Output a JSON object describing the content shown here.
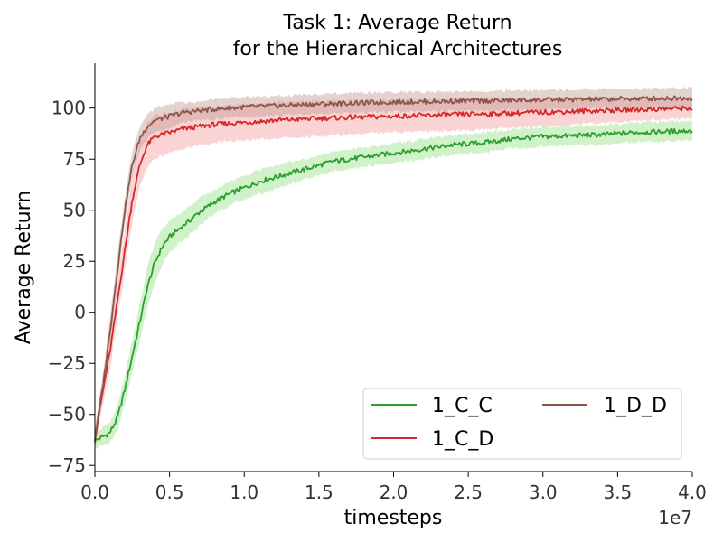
{
  "chart_data": {
    "type": "line",
    "title": [
      "Task 1: Average Return",
      "for the Hierarchical Architectures"
    ],
    "xlabel": "timesteps",
    "ylabel": "Average Return",
    "x_offset_label": "1e7",
    "xlim": [
      0,
      4.0
    ],
    "ylim": [
      -78,
      122
    ],
    "xticks": [
      0.0,
      0.5,
      1.0,
      1.5,
      2.0,
      2.5,
      3.0,
      3.5,
      4.0
    ],
    "xtick_labels": [
      "0.0",
      "0.5",
      "1.0",
      "1.5",
      "2.0",
      "2.5",
      "3.0",
      "3.5",
      "4.0"
    ],
    "yticks": [
      -75,
      -50,
      -25,
      0,
      25,
      50,
      75,
      100
    ],
    "ytick_labels": [
      "−75",
      "−50",
      "−25",
      "0",
      "25",
      "50",
      "75",
      "100"
    ],
    "grid": false,
    "legend_position": "lower-right",
    "series": [
      {
        "name": "1_C_C",
        "color": "#2ca02c",
        "band_color": "#98df8a",
        "x": [
          0,
          0.1,
          0.15,
          0.2,
          0.3,
          0.35,
          0.4,
          0.45,
          0.5,
          0.6,
          0.7,
          0.8,
          0.9,
          1.0,
          1.1,
          1.2,
          1.3,
          1.4,
          1.5,
          1.6,
          1.7,
          1.8,
          1.9,
          2.0,
          2.2,
          2.4,
          2.6,
          2.8,
          3.0,
          3.2,
          3.4,
          3.6,
          3.8,
          4.0
        ],
        "y": [
          -63,
          -59,
          -52,
          -38,
          -5,
          12,
          24,
          32,
          37,
          43,
          49,
          54,
          58,
          61,
          64,
          66,
          68,
          70,
          72,
          74,
          75,
          76,
          77,
          78,
          80,
          82,
          83,
          85,
          86,
          86.5,
          87,
          88,
          88.5,
          89
        ],
        "band": [
          3,
          4,
          5,
          6,
          8,
          9,
          9,
          8,
          7,
          6,
          6,
          5,
          5,
          5,
          5,
          5,
          5,
          4,
          4,
          4,
          4,
          4,
          4,
          4,
          4,
          4,
          4,
          4,
          4,
          4,
          4,
          4,
          4,
          4
        ]
      },
      {
        "name": "1_C_D",
        "color": "#d62728",
        "band_color": "#f4a0a0",
        "x": [
          0,
          0.05,
          0.1,
          0.15,
          0.2,
          0.25,
          0.3,
          0.35,
          0.4,
          0.5,
          0.6,
          0.8,
          1.0,
          1.2,
          1.5,
          2.0,
          2.5,
          3.0,
          3.5,
          4.0
        ],
        "y": [
          -62,
          -40,
          -20,
          5,
          30,
          55,
          72,
          82,
          86,
          88,
          90,
          92,
          93,
          94,
          95,
          96,
          97,
          98,
          99,
          100
        ],
        "band": [
          4,
          6,
          7,
          8,
          9,
          10,
          10,
          10,
          10,
          9,
          9,
          8,
          8,
          8,
          8,
          7,
          7,
          6,
          5,
          4
        ]
      },
      {
        "name": "1_D_D",
        "color": "#8c564b",
        "band_color": "#c49c94",
        "x": [
          0,
          0.05,
          0.1,
          0.15,
          0.2,
          0.25,
          0.3,
          0.35,
          0.4,
          0.5,
          0.6,
          0.8,
          1.0,
          1.5,
          2.0,
          2.5,
          3.0,
          3.5,
          4.0
        ],
        "y": [
          -62,
          -38,
          -10,
          20,
          50,
          72,
          85,
          91,
          94,
          96,
          98,
          99.5,
          100.5,
          102,
          103,
          103.5,
          104,
          104.5,
          105
        ],
        "band": [
          4,
          5,
          6,
          6,
          6,
          6,
          5,
          5,
          5,
          5,
          4,
          4,
          4,
          4,
          4,
          4,
          4,
          4,
          4
        ]
      }
    ]
  }
}
